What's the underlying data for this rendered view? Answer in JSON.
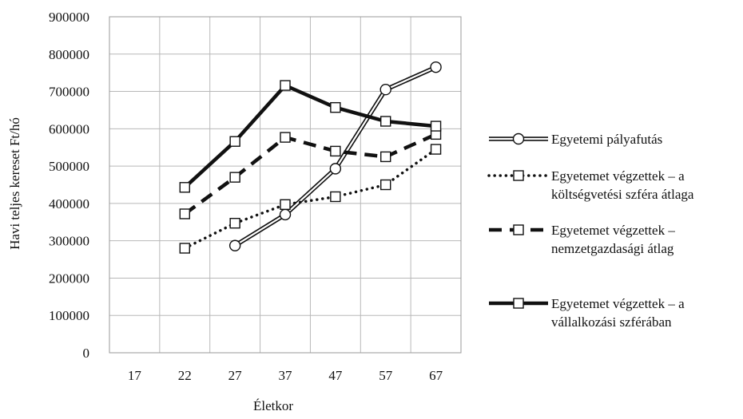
{
  "chart_data": {
    "type": "line",
    "title": "",
    "xlabel": "Életkor",
    "ylabel": "Havi teljes kereset Ft/hó",
    "categories": [
      "17",
      "22",
      "27",
      "37",
      "47",
      "57",
      "67"
    ],
    "ylim": [
      0,
      900000
    ],
    "yticks": [
      0,
      100000,
      200000,
      300000,
      400000,
      500000,
      600000,
      700000,
      800000,
      900000
    ],
    "grid": true,
    "legend_position": "right",
    "series": [
      {
        "name": "Egyetemi pályafutás",
        "style": "double-line",
        "marker": "circle",
        "values": [
          null,
          null,
          287000,
          370000,
          493000,
          705000,
          765000
        ]
      },
      {
        "name": "Egyetemet végzettek – a költségvetési szféra átlaga",
        "style": "dotted",
        "marker": "square",
        "values": [
          null,
          280000,
          347000,
          397000,
          418000,
          450000,
          545000
        ]
      },
      {
        "name": "Egyetemet végzettek – nemzetgazdasági átlag",
        "style": "dashed",
        "marker": "square",
        "values": [
          null,
          372000,
          470000,
          577000,
          540000,
          525000,
          585000
        ]
      },
      {
        "name": "Egyetemet végzettek – a vállalkozási szférában",
        "style": "solid",
        "marker": "square",
        "values": [
          null,
          443000,
          566000,
          716000,
          657000,
          620000,
          607000
        ]
      }
    ],
    "legend_lines": [
      [
        "Egyetemi pályafutás"
      ],
      [
        "Egyetemet végzettek – a",
        "költségvetési szféra átlaga"
      ],
      [
        "Egyetemet végzettek –",
        "nemzetgazdasági átlag"
      ],
      [
        "Egyetemet végzettek – a",
        "vállalkozási szférában"
      ]
    ]
  }
}
